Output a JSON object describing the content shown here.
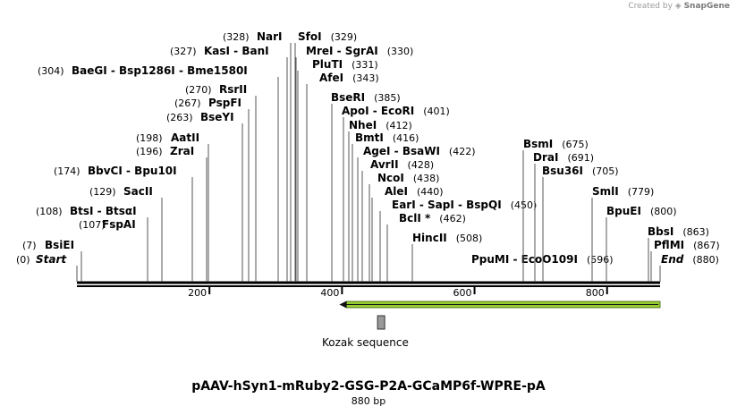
{
  "credit": {
    "prefix": "Created by",
    "brand": "SnapGene"
  },
  "sequence": {
    "title": "pAAV-hSyn1-mRuby2-GSG-P2A-GCaMP6f-WPRE-pA",
    "size_label": "880 bp",
    "length": 880
  },
  "ruler_ticks": [
    200,
    400,
    600,
    800
  ],
  "features": [
    {
      "name": "Kozak sequence",
      "start": 455,
      "end": 460
    },
    {
      "name": "arrow",
      "start": 396,
      "end": 880,
      "direction": "reverse",
      "color": "#9acd32"
    }
  ],
  "sites": [
    {
      "pos": 0,
      "names": [
        "Start"
      ],
      "style": "bi"
    },
    {
      "pos": 7,
      "names": [
        "BsiEI"
      ]
    },
    {
      "pos": 107,
      "names": [
        "FspAI"
      ]
    },
    {
      "pos": 108,
      "names": [
        "BtsI",
        "BtsαI"
      ]
    },
    {
      "pos": 129,
      "names": [
        "SacII"
      ]
    },
    {
      "pos": 174,
      "names": [
        "BbvCI",
        "Bpu10I"
      ]
    },
    {
      "pos": 196,
      "names": [
        "ZraI"
      ]
    },
    {
      "pos": 198,
      "names": [
        "AatII"
      ]
    },
    {
      "pos": 263,
      "names": [
        "BseYI"
      ]
    },
    {
      "pos": 267,
      "names": [
        "PspFI"
      ]
    },
    {
      "pos": 270,
      "names": [
        "RsrII"
      ]
    },
    {
      "pos": 304,
      "names": [
        "BaeGI",
        "Bsp1286I",
        "Bme1580I"
      ]
    },
    {
      "pos": 327,
      "names": [
        "KasI",
        "BanI"
      ]
    },
    {
      "pos": 328,
      "names": [
        "NarI"
      ]
    },
    {
      "pos": 329,
      "names": [
        "SfoI"
      ]
    },
    {
      "pos": 330,
      "names": [
        "MreI",
        "SgrAI"
      ]
    },
    {
      "pos": 331,
      "names": [
        "PluTI"
      ]
    },
    {
      "pos": 343,
      "names": [
        "AfeI"
      ]
    },
    {
      "pos": 385,
      "names": [
        "BseRI"
      ]
    },
    {
      "pos": 401,
      "names": [
        "ApoI",
        "EcoRI"
      ]
    },
    {
      "pos": 412,
      "names": [
        "NheI"
      ]
    },
    {
      "pos": 416,
      "names": [
        "BmtI"
      ]
    },
    {
      "pos": 422,
      "names": [
        "AgeI",
        "BsaWI"
      ]
    },
    {
      "pos": 428,
      "names": [
        "AvrII"
      ]
    },
    {
      "pos": 438,
      "names": [
        "NcoI"
      ]
    },
    {
      "pos": 440,
      "names": [
        "AleI"
      ]
    },
    {
      "pos": 450,
      "names": [
        "EarI",
        "SapI",
        "BspQI"
      ]
    },
    {
      "pos": 462,
      "names": [
        "BclI *"
      ]
    },
    {
      "pos": 508,
      "names": [
        "HincII"
      ]
    },
    {
      "pos": 596,
      "names": [
        "PpuMI",
        "EcoO109I"
      ]
    },
    {
      "pos": 675,
      "names": [
        "BsmI"
      ]
    },
    {
      "pos": 691,
      "names": [
        "DraI"
      ]
    },
    {
      "pos": 705,
      "names": [
        "Bsu36I"
      ]
    },
    {
      "pos": 779,
      "names": [
        "SmlI"
      ]
    },
    {
      "pos": 800,
      "names": [
        "BpuEI"
      ]
    },
    {
      "pos": 863,
      "names": [
        "BbsI"
      ]
    },
    {
      "pos": 867,
      "names": [
        "PflMI"
      ]
    },
    {
      "pos": 880,
      "names": [
        "End"
      ],
      "style": "bi"
    }
  ]
}
